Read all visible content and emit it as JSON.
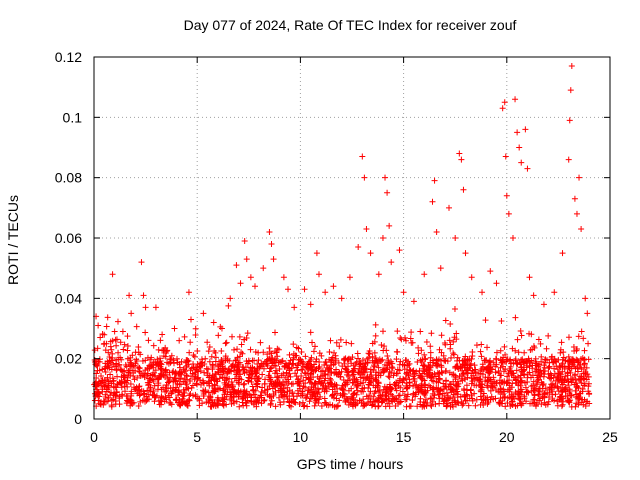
{
  "chart_data": {
    "type": "scatter",
    "title": "Day 077 of 2024, Rate Of TEC Index for receiver zouf",
    "xlabel": "GPS time / hours",
    "ylabel": "ROTI / TECUs",
    "xlim": [
      0,
      25
    ],
    "ylim": [
      0,
      0.12
    ],
    "xticks": [
      0,
      5,
      10,
      15,
      20,
      25
    ],
    "yticks": [
      0,
      0.02,
      0.04,
      0.06,
      0.08,
      0.1,
      0.12
    ],
    "xtick_labels": [
      "0",
      "5",
      "10",
      "15",
      "20",
      "25"
    ],
    "ytick_labels": [
      "0",
      "0.02",
      "0.04",
      "0.06",
      "0.08",
      "0.1",
      "0.12"
    ],
    "grid": true,
    "marker": "+",
    "series": [
      {
        "name": "ROTI",
        "color": "#ff0000",
        "points": [
          [
            0.1,
            0.034
          ],
          [
            0.2,
            0.031
          ],
          [
            0.3,
            0.027
          ],
          [
            0.5,
            0.025
          ],
          [
            0.9,
            0.048
          ],
          [
            1.0,
            0.029
          ],
          [
            1.4,
            0.029
          ],
          [
            1.7,
            0.041
          ],
          [
            1.8,
            0.035
          ],
          [
            2.3,
            0.052
          ],
          [
            2.4,
            0.041
          ],
          [
            2.5,
            0.037
          ],
          [
            3.0,
            0.037
          ],
          [
            3.3,
            0.028
          ],
          [
            3.9,
            0.03
          ],
          [
            4.6,
            0.042
          ],
          [
            4.7,
            0.033
          ],
          [
            5.3,
            0.035
          ],
          [
            5.8,
            0.032
          ],
          [
            6.2,
            0.03
          ],
          [
            6.6,
            0.04
          ],
          [
            6.9,
            0.051
          ],
          [
            7.1,
            0.045
          ],
          [
            7.3,
            0.059
          ],
          [
            7.4,
            0.053
          ],
          [
            7.6,
            0.047
          ],
          [
            7.8,
            0.044
          ],
          [
            8.2,
            0.05
          ],
          [
            8.5,
            0.062
          ],
          [
            8.6,
            0.058
          ],
          [
            8.7,
            0.053
          ],
          [
            9.2,
            0.047
          ],
          [
            9.4,
            0.043
          ],
          [
            9.7,
            0.037
          ],
          [
            10.2,
            0.043
          ],
          [
            10.5,
            0.038
          ],
          [
            10.8,
            0.055
          ],
          [
            10.9,
            0.048
          ],
          [
            11.2,
            0.042
          ],
          [
            11.6,
            0.044
          ],
          [
            12.0,
            0.04
          ],
          [
            12.4,
            0.047
          ],
          [
            12.8,
            0.057
          ],
          [
            13.0,
            0.087
          ],
          [
            13.1,
            0.08
          ],
          [
            13.2,
            0.063
          ],
          [
            13.4,
            0.055
          ],
          [
            13.8,
            0.048
          ],
          [
            14.0,
            0.06
          ],
          [
            14.1,
            0.08
          ],
          [
            14.2,
            0.075
          ],
          [
            14.3,
            0.064
          ],
          [
            14.4,
            0.052
          ],
          [
            14.8,
            0.056
          ],
          [
            15.0,
            0.042
          ],
          [
            15.5,
            0.039
          ],
          [
            16.0,
            0.048
          ],
          [
            16.4,
            0.072
          ],
          [
            16.5,
            0.079
          ],
          [
            16.6,
            0.062
          ],
          [
            16.8,
            0.05
          ],
          [
            17.2,
            0.07
          ],
          [
            17.5,
            0.06
          ],
          [
            17.7,
            0.088
          ],
          [
            17.8,
            0.086
          ],
          [
            17.9,
            0.076
          ],
          [
            18.0,
            0.055
          ],
          [
            18.3,
            0.047
          ],
          [
            18.8,
            0.042
          ],
          [
            19.2,
            0.049
          ],
          [
            19.5,
            0.045
          ],
          [
            19.8,
            0.103
          ],
          [
            19.9,
            0.105
          ],
          [
            19.95,
            0.087
          ],
          [
            20.0,
            0.074
          ],
          [
            20.1,
            0.068
          ],
          [
            20.3,
            0.06
          ],
          [
            20.4,
            0.106
          ],
          [
            20.5,
            0.095
          ],
          [
            20.6,
            0.09
          ],
          [
            20.7,
            0.085
          ],
          [
            20.9,
            0.096
          ],
          [
            21.0,
            0.083
          ],
          [
            21.1,
            0.047
          ],
          [
            21.3,
            0.041
          ],
          [
            21.8,
            0.038
          ],
          [
            22.3,
            0.042
          ],
          [
            22.7,
            0.055
          ],
          [
            23.0,
            0.086
          ],
          [
            23.05,
            0.099
          ],
          [
            23.1,
            0.109
          ],
          [
            23.15,
            0.117
          ],
          [
            23.3,
            0.073
          ],
          [
            23.4,
            0.068
          ],
          [
            23.5,
            0.08
          ],
          [
            23.6,
            0.063
          ],
          [
            23.8,
            0.04
          ],
          [
            23.9,
            0.035
          ]
        ]
      }
    ]
  }
}
